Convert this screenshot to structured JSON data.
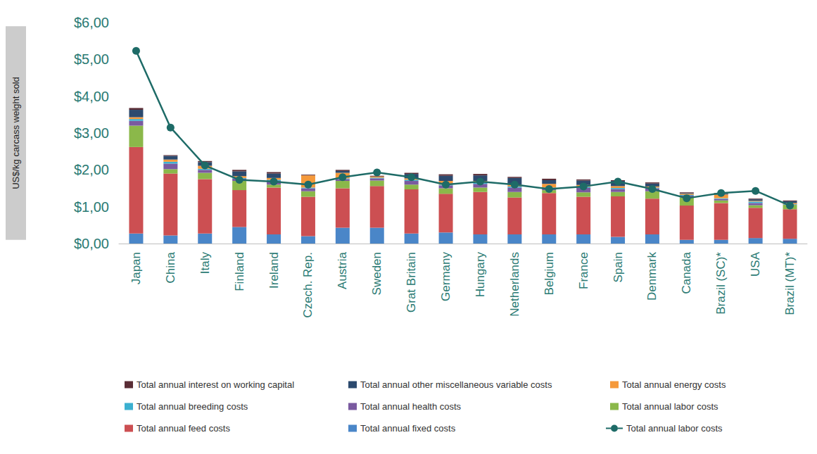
{
  "chart_data": {
    "type": "bar",
    "y_label": "US$/kg carcass weight sold",
    "categories": [
      "Japan",
      "China",
      "Italy",
      "Finland",
      "Ireland",
      "Czech. Rep.",
      "Austria",
      "Sweden",
      "Grat Britain",
      "Germany",
      "Hungary",
      "Netherlands",
      "Belgium",
      "France",
      "Spain",
      "Denmark",
      "Canada",
      "Brazil (SC)*",
      "USA",
      "Brazil (MT)*"
    ],
    "ylim": [
      0,
      6
    ],
    "yticks": [
      {
        "value": 0,
        "label": "$0,00"
      },
      {
        "value": 1,
        "label": "$1,00"
      },
      {
        "value": 2,
        "label": "$2,00"
      },
      {
        "value": 3,
        "label": "$3,00"
      },
      {
        "value": 4,
        "label": "$4,00"
      },
      {
        "value": 5,
        "label": "$5,00"
      },
      {
        "value": 6,
        "label": "$6,00"
      }
    ],
    "grid": false,
    "stacked": true,
    "legend": "bottom",
    "series": [
      {
        "name": "Total annual fixed costs",
        "type": "bar",
        "color": "#4a86c8",
        "values": [
          0.27,
          0.22,
          0.27,
          0.45,
          0.25,
          0.2,
          0.43,
          0.43,
          0.27,
          0.3,
          0.25,
          0.25,
          0.25,
          0.25,
          0.18,
          0.25,
          0.1,
          0.1,
          0.15,
          0.13
        ]
      },
      {
        "name": "Total annual feed costs",
        "type": "bar",
        "color": "#cc4f52",
        "values": [
          2.35,
          1.68,
          1.48,
          1.0,
          1.27,
          1.07,
          1.07,
          1.13,
          1.2,
          1.05,
          1.15,
          1.0,
          1.12,
          1.02,
          1.1,
          0.97,
          0.93,
          1.0,
          0.82,
          0.8
        ]
      },
      {
        "name": "Total annual labor costs",
        "type": "bar",
        "color": "#8bb84a",
        "values": [
          0.58,
          0.12,
          0.17,
          0.25,
          0.08,
          0.15,
          0.2,
          0.15,
          0.13,
          0.15,
          0.12,
          0.15,
          0.08,
          0.12,
          0.12,
          0.2,
          0.22,
          0.07,
          0.07,
          0.12
        ]
      },
      {
        "name": "Total annual health costs",
        "type": "bar",
        "color": "#7a5aa0",
        "values": [
          0.13,
          0.15,
          0.08,
          0.06,
          0.1,
          0.08,
          0.05,
          0.06,
          0.1,
          0.08,
          0.1,
          0.12,
          0.05,
          0.12,
          0.08,
          0.08,
          0.05,
          0.04,
          0.06,
          0.01
        ]
      },
      {
        "name": "Total annual breeding costs",
        "type": "bar",
        "color": "#3bb0d0",
        "values": [
          0.05,
          0.05,
          0.03,
          0.02,
          0.03,
          0.02,
          0.02,
          0.02,
          0.03,
          0.02,
          0.03,
          0.03,
          0.02,
          0.03,
          0.03,
          0.02,
          0.02,
          0.02,
          0.04,
          0.01
        ]
      },
      {
        "name": "Total annual energy costs",
        "type": "bar",
        "color": "#f5993a",
        "values": [
          0.05,
          0.06,
          0.08,
          0.05,
          0.05,
          0.33,
          0.15,
          0.03,
          0.04,
          0.1,
          0.05,
          0.05,
          0.1,
          0.05,
          0.05,
          0.03,
          0.03,
          0.1,
          0.02,
          0.03
        ]
      },
      {
        "name": "Total annual other miscellaneous variable costs",
        "type": "bar",
        "color": "#2c4a6e",
        "values": [
          0.2,
          0.1,
          0.1,
          0.13,
          0.12,
          0,
          0.05,
          0,
          0.12,
          0.14,
          0.15,
          0.18,
          0.1,
          0.12,
          0.14,
          0.08,
          0.02,
          0.02,
          0.04,
          0.05
        ]
      },
      {
        "name": "Total annual interest on working capital",
        "type": "bar",
        "color": "#5a2d36",
        "values": [
          0.05,
          0.02,
          0.03,
          0.04,
          0.04,
          0.02,
          0.03,
          0.02,
          0.03,
          0.04,
          0.04,
          0.03,
          0.04,
          0.03,
          0.02,
          0.03,
          0.02,
          0.02,
          0.02,
          0.02
        ]
      },
      {
        "name": "Total annual labor costs",
        "type": "line",
        "color": "#1e6b67",
        "marker": "circle",
        "line_style": "solid",
        "values": [
          5.23,
          3.15,
          2.12,
          1.73,
          1.68,
          1.6,
          1.8,
          1.93,
          1.8,
          1.6,
          1.68,
          1.6,
          1.48,
          1.55,
          1.68,
          1.48,
          1.23,
          1.37,
          1.43,
          1.03
        ]
      }
    ]
  }
}
